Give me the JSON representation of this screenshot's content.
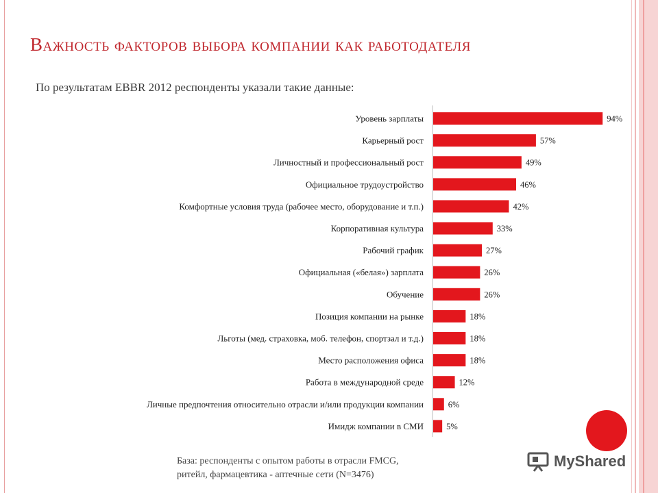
{
  "slide": {
    "title": "Важность факторов выбора компании как работодателя",
    "subtitle": "По результатам EBBR 2012 респонденты указали такие данные:",
    "note_line1": "База: респонденты с опытом работы в отрасли FMCG,",
    "note_line2": "ритейл, фармацевтика - аптечные сети (N=3476)",
    "watermark": "MyShared",
    "watermark_icon": "presentation-board-icon"
  },
  "colors": {
    "title": "#c0272d",
    "bar": "#e3171d",
    "accent_circle": "#e3171d"
  },
  "chart_data": {
    "type": "bar",
    "orientation": "horizontal",
    "categories": [
      "Уровень зарплаты",
      "Карьерный рост",
      "Личностный и профессиональный рост",
      "Официальное трудоустройство",
      "Комфортные условия труда (рабочее место, оборудование и т.п.)",
      "Корпоративная культура",
      "Рабочий график",
      "Официальная («белая») зарплата",
      "Обучение",
      "Позиция компании на рынке",
      "Льготы (мед. страховка, моб. телефон, спортзал и т.д.)",
      "Место расположения офиса",
      "Работа в международной среде",
      "Личные предпочтения относительно отрасли и/или продукции компании",
      "Имидж компании в СМИ"
    ],
    "values": [
      94,
      57,
      49,
      46,
      42,
      33,
      27,
      26,
      26,
      18,
      18,
      18,
      12,
      6,
      5
    ],
    "data_labels": [
      "94%",
      "57%",
      "49%",
      "46%",
      "42%",
      "33%",
      "27%",
      "26%",
      "26%",
      "18%",
      "18%",
      "18%",
      "12%",
      "6%",
      "5%"
    ],
    "title": "",
    "xlabel": "",
    "ylabel": "",
    "xlim": [
      0,
      100
    ],
    "unit": "%",
    "grid": false,
    "legend": false
  }
}
